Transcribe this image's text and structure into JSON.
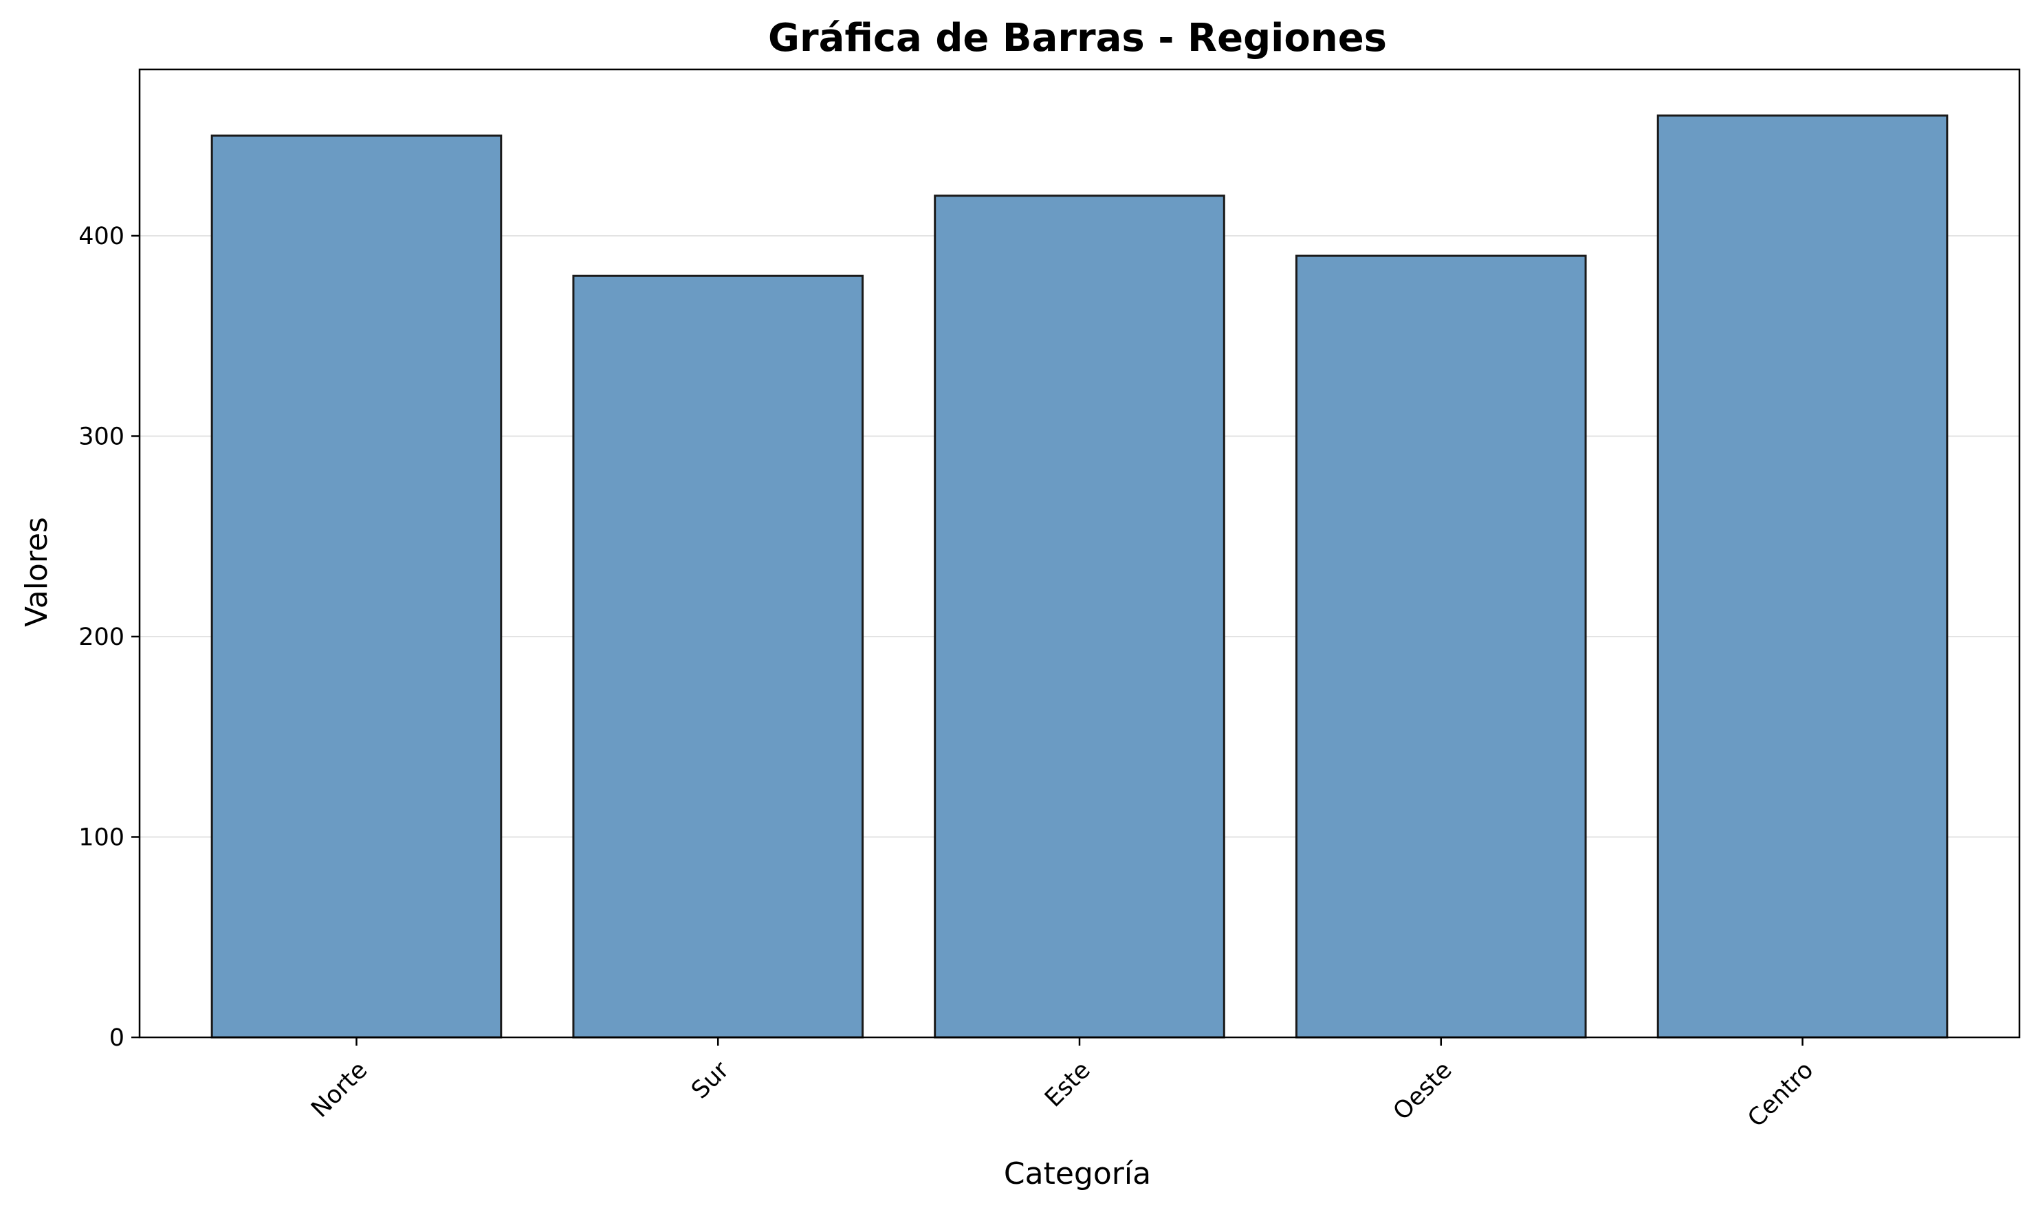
{
  "chart_data": {
    "type": "bar",
    "title": "Gráfica de Barras - Regiones",
    "xlabel": "Categoría",
    "ylabel": "Valores",
    "categories": [
      "Norte",
      "Sur",
      "Este",
      "Oeste",
      "Centro"
    ],
    "values": [
      450,
      380,
      420,
      390,
      460
    ],
    "yticks": [
      0,
      100,
      200,
      300,
      400
    ],
    "ylim": [
      0,
      483
    ],
    "grid": "horizontal",
    "legend": "none",
    "colors": {
      "bar_fill": "#6b9bc3",
      "bar_edge": "#1a1a1a",
      "grid": "#e3e3e3",
      "axis": "#000000"
    }
  }
}
